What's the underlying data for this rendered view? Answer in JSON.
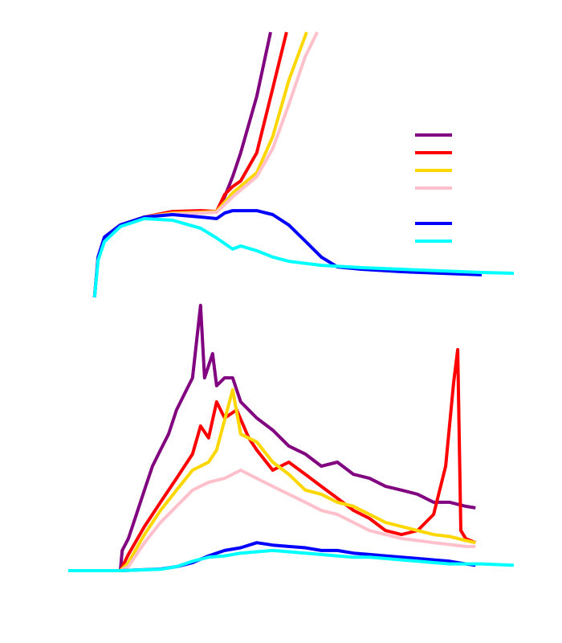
{
  "chart_data": [
    {
      "type": "line",
      "xlim": [
        0,
        100
      ],
      "ylim": [
        0,
        100
      ],
      "legend": true,
      "series": [
        {
          "color": "#800080",
          "x": [
            5.9,
            6.7,
            8.1,
            11.7,
            17.1,
            23.4,
            29.7,
            33.3,
            35.1,
            36.9,
            38.7,
            42.3,
            45.4
          ],
          "values": [
            0,
            15.2,
            22.7,
            27.3,
            30.3,
            31.8,
            32.1,
            32.4,
            37.9,
            45.5,
            54.5,
            75.8,
            100
          ]
        },
        {
          "color": "#ff0000",
          "x": [
            5.9,
            6.7,
            8.1,
            11.7,
            17.1,
            23.4,
            29.7,
            33.3,
            35.1,
            36.9,
            38.7,
            42.3,
            45.9,
            49.0
          ],
          "values": [
            0,
            15.2,
            22.7,
            27.3,
            30.3,
            32.4,
            32.7,
            32.4,
            38.8,
            41.8,
            43.9,
            54.5,
            78.8,
            100
          ]
        },
        {
          "color": "#ffd700",
          "x": [
            5.9,
            6.7,
            8.1,
            11.7,
            17.1,
            23.4,
            29.7,
            33.3,
            36.9,
            42.3,
            45.9,
            49.5,
            53.5
          ],
          "values": [
            0,
            15.2,
            22.7,
            27.3,
            30.3,
            31.8,
            32.1,
            32.4,
            39.4,
            47.0,
            60.6,
            81.8,
            100
          ]
        },
        {
          "color": "#ffc0cb",
          "x": [
            5.9,
            6.7,
            8.1,
            11.7,
            17.1,
            23.4,
            29.7,
            33.3,
            36.9,
            42.3,
            45.9,
            49.5,
            53.2,
            55.9
          ],
          "values": [
            0,
            15.2,
            22.7,
            27.3,
            30.3,
            31.5,
            31.8,
            32.1,
            37.9,
            45.5,
            56.1,
            72.7,
            90.9,
            100
          ]
        },
        {
          "color": "#0000ff",
          "x": [
            5.9,
            6.7,
            8.1,
            11.7,
            17.1,
            23.4,
            29.7,
            33.3,
            35.1,
            36.9,
            42.3,
            45.9,
            49.5,
            53.2,
            56.8,
            60.4,
            65.8,
            74.8,
            83.8,
            92.8
          ],
          "values": [
            0,
            15.2,
            22.7,
            27.3,
            30.3,
            31.2,
            30.3,
            29.7,
            31.8,
            32.7,
            32.7,
            31.2,
            27.3,
            21.2,
            15.2,
            11.5,
            10.6,
            9.7,
            9.1,
            8.5
          ]
        },
        {
          "color": "#00ffff",
          "x": [
            5.9,
            6.7,
            8.1,
            11.7,
            17.1,
            23.4,
            29.7,
            33.3,
            36.9,
            38.7,
            42.3,
            45.9,
            49.5,
            56.8,
            65.8,
            74.8,
            83.8,
            92.8,
            100
          ],
          "values": [
            0,
            14.0,
            21.0,
            26.7,
            29.7,
            29.1,
            26.1,
            22.4,
            18.2,
            19.4,
            17.6,
            15.2,
            13.6,
            12.1,
            11.2,
            10.6,
            10.0,
            9.4,
            9.1
          ]
        }
      ]
    },
    {
      "type": "line",
      "xlim": [
        0,
        100
      ],
      "ylim": [
        0,
        100
      ],
      "series": [
        {
          "color": "#800080",
          "x": [
            11.7,
            12.1,
            13.5,
            15.3,
            17.1,
            18.9,
            20.7,
            22.5,
            24.3,
            26.1,
            27.9,
            29.7,
            30.6,
            32.4,
            33.3,
            35.1,
            36.9,
            38.7,
            42.3,
            45.9,
            49.5,
            53.2,
            56.8,
            60.4,
            64.0,
            67.6,
            71.2,
            74.8,
            78.4,
            82.0,
            85.6,
            89.2,
            91.4
          ],
          "values": [
            0,
            7.5,
            11.9,
            20.9,
            29.9,
            38.8,
            44.8,
            50.7,
            59.7,
            65.7,
            71.6,
            98.5,
            71.6,
            80.6,
            68.7,
            71.6,
            71.6,
            62.7,
            56.7,
            52.2,
            46.3,
            43.3,
            38.8,
            40.3,
            35.8,
            34.3,
            31.3,
            29.9,
            28.4,
            25.4,
            25.4,
            23.9,
            23.3
          ]
        },
        {
          "color": "#ff0000",
          "x": [
            11.7,
            13.5,
            17.1,
            20.7,
            24.3,
            27.9,
            29.7,
            31.5,
            33.3,
            35.1,
            37.8,
            40.5,
            42.3,
            45.9,
            49.5,
            53.2,
            56.8,
            60.4,
            64.0,
            67.6,
            71.2,
            74.8,
            78.4,
            82.0,
            84.7,
            86.5,
            87.4,
            88.1,
            89.2,
            91.4
          ],
          "values": [
            0,
            6,
            16.4,
            25.4,
            34.3,
            43.3,
            53.7,
            49.3,
            62.7,
            56.7,
            59.7,
            49.3,
            44.8,
            37.3,
            40.3,
            35.8,
            31.3,
            26.9,
            22.4,
            19.4,
            14.9,
            13.4,
            14.9,
            20.9,
            38.8,
            70.1,
            82.1,
            14.9,
            11.9,
            10.4
          ]
        },
        {
          "color": "#ffd700",
          "x": [
            11.7,
            13.5,
            17.1,
            20.7,
            24.3,
            27.9,
            31.5,
            33.3,
            36.9,
            38.7,
            42.3,
            45.9,
            49.5,
            53.2,
            56.8,
            60.4,
            64.0,
            67.6,
            71.2,
            74.8,
            78.4,
            82.0,
            85.6,
            89.2,
            91.4
          ],
          "values": [
            0,
            3,
            13.4,
            22.4,
            29.9,
            37.3,
            40.3,
            44.8,
            67.2,
            50.7,
            47.8,
            40.3,
            35.8,
            29.9,
            28.4,
            25.4,
            23.9,
            20.9,
            17.9,
            16.4,
            14.9,
            13.4,
            12.7,
            11.2,
            10.4
          ]
        },
        {
          "color": "#ffc0cb",
          "x": [
            11.7,
            13.5,
            17.1,
            20.7,
            24.3,
            27.9,
            31.5,
            35.1,
            38.7,
            42.3,
            45.9,
            49.5,
            53.2,
            56.8,
            60.4,
            64.0,
            67.6,
            71.2,
            74.8,
            78.4,
            82.0,
            85.6,
            89.2,
            91.4
          ],
          "values": [
            0,
            1.5,
            10.4,
            17.9,
            23.9,
            29.9,
            32.8,
            34.3,
            37.3,
            34.3,
            31.3,
            28.4,
            25.4,
            22.4,
            20.9,
            17.9,
            14.9,
            13.4,
            11.9,
            11.2,
            10.4,
            9.7,
            9,
            9
          ]
        },
        {
          "color": "#0000ff",
          "x": [
            0,
            11.7,
            20.7,
            24.3,
            27.9,
            31.5,
            35.1,
            38.7,
            42.3,
            45.9,
            49.5,
            53.2,
            56.8,
            60.4,
            64.0,
            67.6,
            71.2,
            74.8,
            78.4,
            82.0,
            85.6,
            89.2,
            91.4
          ],
          "values": [
            0,
            0,
            0.6,
            1.5,
            3,
            5.5,
            7.5,
            8.5,
            10.4,
            9.5,
            9,
            8.5,
            7.5,
            7.5,
            6.5,
            6,
            5.5,
            5,
            4.5,
            4,
            3.5,
            2.5,
            2
          ]
        },
        {
          "color": "#00ffff",
          "x": [
            0,
            11.7,
            20.7,
            24.3,
            27.9,
            31.5,
            35.1,
            38.7,
            42.3,
            45.9,
            49.5,
            53.2,
            56.8,
            60.4,
            64.0,
            67.6,
            71.2,
            74.8,
            78.4,
            82.0,
            85.6,
            89.2,
            92.8,
            100
          ],
          "values": [
            0,
            0,
            0.5,
            1.5,
            3.5,
            5,
            5.5,
            6.5,
            7,
            7.5,
            7,
            6.5,
            6,
            5.5,
            5,
            5,
            4.5,
            4,
            3.5,
            3,
            2.5,
            2.5,
            2.5,
            2
          ]
        }
      ]
    }
  ]
}
